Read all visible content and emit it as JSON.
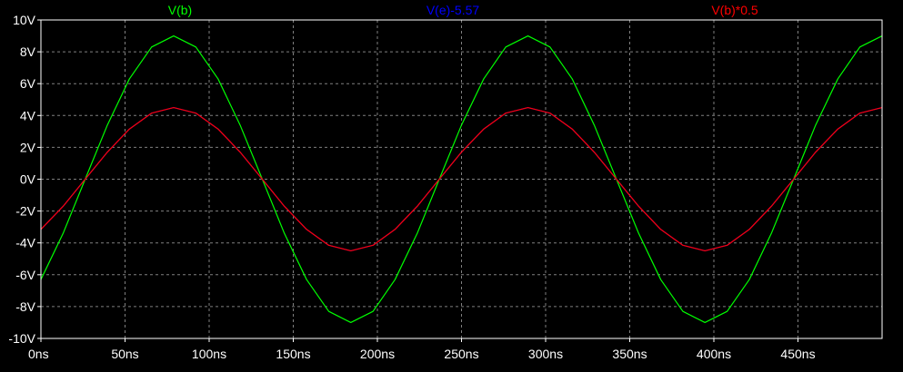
{
  "chart_data": {
    "type": "line",
    "x_unit": "ns",
    "y_unit": "V",
    "xlim": [
      0,
      500
    ],
    "ylim": [
      -10,
      10
    ],
    "x_ticks": [
      0,
      50,
      100,
      150,
      200,
      250,
      300,
      350,
      400,
      450
    ],
    "x_tick_labels": [
      "0ns",
      "50ns",
      "100ns",
      "150ns",
      "200ns",
      "250ns",
      "300ns",
      "350ns",
      "400ns",
      "450ns"
    ],
    "y_ticks": [
      10,
      8,
      6,
      4,
      2,
      0,
      -2,
      -4,
      -6,
      -8,
      -10
    ],
    "y_tick_labels": [
      "10V",
      "8V",
      "6V",
      "4V",
      "2V",
      "0V",
      "-2V",
      "-4V",
      "-6V",
      "-8V",
      "-10V"
    ],
    "grid": true,
    "grid_style": "dashed",
    "legend_placement": "top",
    "background_color": "#000000",
    "axis_color": "#ffffff",
    "grid_color": "#808080",
    "series": [
      {
        "name": "V(b)",
        "color": "#00ff00",
        "x": [
          0,
          13.2,
          26.3,
          39.5,
          52.6,
          65.8,
          78.9,
          92.1,
          105.3,
          118.4,
          131.6,
          144.7,
          157.9,
          171.1,
          184.2,
          197.4,
          210.5,
          223.7,
          236.8,
          250,
          263.2,
          276.3,
          289.5,
          302.6,
          315.8,
          328.9,
          342.1,
          355.3,
          368.4,
          381.6,
          394.7,
          407.9,
          421.1,
          434.2,
          447.4,
          460.5,
          473.7,
          486.8,
          500
        ],
        "y": [
          -6.3,
          -3.4,
          0.0,
          3.4,
          6.3,
          8.3,
          9.0,
          8.3,
          6.3,
          3.4,
          0.0,
          -3.4,
          -6.3,
          -8.3,
          -9.0,
          -8.3,
          -6.3,
          -3.4,
          0.0,
          3.4,
          6.3,
          8.3,
          9.0,
          8.3,
          6.3,
          3.4,
          0.0,
          -3.4,
          -6.3,
          -8.3,
          -9.0,
          -8.3,
          -6.3,
          -3.4,
          0.0,
          3.4,
          6.3,
          8.3,
          9.0
        ]
      },
      {
        "name": "V(e)-5.57",
        "color": "#0000ff",
        "x": [
          0,
          13.2,
          26.3,
          39.5,
          52.6,
          65.8,
          78.9,
          92.1,
          105.3,
          118.4,
          131.6,
          144.7,
          157.9,
          171.1,
          184.2,
          197.4,
          210.5,
          223.7,
          236.8,
          250,
          263.2,
          276.3,
          289.5,
          302.6,
          315.8,
          328.9,
          342.1,
          355.3,
          368.4,
          381.6,
          394.7,
          407.9,
          421.1,
          434.2,
          447.4,
          460.5,
          473.7,
          486.8,
          500
        ],
        "y": [
          -3.15,
          -1.7,
          0.0,
          1.7,
          3.15,
          4.15,
          4.5,
          4.15,
          3.15,
          1.7,
          0.0,
          -1.7,
          -3.15,
          -4.15,
          -4.5,
          -4.15,
          -3.15,
          -1.7,
          0.0,
          1.7,
          3.15,
          4.15,
          4.5,
          4.15,
          3.15,
          1.7,
          0.0,
          -1.7,
          -3.15,
          -4.15,
          -4.5,
          -4.15,
          -3.15,
          -1.7,
          0.0,
          1.7,
          3.15,
          4.15,
          4.5
        ]
      },
      {
        "name": "V(b)*0.5",
        "color": "#ff0000",
        "x": [
          0,
          13.2,
          26.3,
          39.5,
          52.6,
          65.8,
          78.9,
          92.1,
          105.3,
          118.4,
          131.6,
          144.7,
          157.9,
          171.1,
          184.2,
          197.4,
          210.5,
          223.7,
          236.8,
          250,
          263.2,
          276.3,
          289.5,
          302.6,
          315.8,
          328.9,
          342.1,
          355.3,
          368.4,
          381.6,
          394.7,
          407.9,
          421.1,
          434.2,
          447.4,
          460.5,
          473.7,
          486.8,
          500
        ],
        "y": [
          -3.15,
          -1.7,
          0.0,
          1.7,
          3.15,
          4.15,
          4.5,
          4.15,
          3.15,
          1.7,
          0.0,
          -1.7,
          -3.15,
          -4.15,
          -4.5,
          -4.15,
          -3.15,
          -1.7,
          0.0,
          1.7,
          3.15,
          4.15,
          4.5,
          4.15,
          3.15,
          1.7,
          0.0,
          -1.7,
          -3.15,
          -4.15,
          -4.5,
          -4.15,
          -3.15,
          -1.7,
          0.0,
          1.7,
          3.15,
          4.15,
          4.5
        ]
      }
    ]
  }
}
